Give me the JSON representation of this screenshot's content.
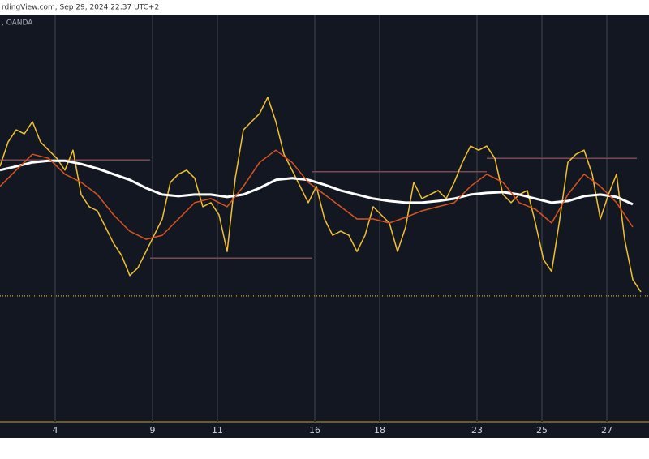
{
  "chart_data": {
    "type": "line",
    "header": "rdingView.com, Sep 29, 2024 22:37 UTC+2",
    "symbol": ", OANDA",
    "x": [
      -1.7,
      -1.45,
      -1.2,
      -0.95,
      -0.7,
      -0.45,
      -0.2,
      0.05,
      0.3,
      0.55,
      0.8,
      1.05,
      1.3,
      1.55,
      1.8,
      2.05,
      2.3,
      2.55,
      2.8,
      3.05,
      3.3,
      3.55,
      3.8,
      4.05,
      4.3,
      4.55,
      4.8,
      5.05,
      5.3,
      5.55,
      5.8,
      6.05,
      6.3,
      6.55,
      6.8,
      7.05,
      7.3,
      7.55,
      7.8,
      8.05,
      8.3,
      8.55,
      8.8,
      9.05,
      9.3,
      9.55,
      9.8,
      10.05,
      10.3,
      10.55,
      10.8,
      11.05,
      11.3,
      11.55,
      11.8,
      12.05,
      12.3,
      12.55,
      12.8,
      13.05,
      13.3,
      13.55,
      13.8,
      14.05,
      14.3,
      14.55,
      14.8,
      15.05,
      15.3,
      15.55,
      15.8,
      16.05,
      16.3,
      16.55,
      16.8,
      17.05,
      17.3,
      17.55,
      17.8,
      18.05
    ],
    "series": [
      {
        "color": "#f2c12e",
        "values": [
          62.7,
          68.7,
          71.7,
          70.7,
          73.7,
          68.7,
          66.7,
          64.7,
          61.8,
          66.7,
          55.8,
          52.8,
          51.8,
          47.8,
          43.8,
          40.8,
          35.9,
          37.8,
          41.8,
          45.8,
          49.8,
          58.8,
          60.8,
          61.8,
          59.8,
          52.8,
          53.8,
          50.8,
          41.8,
          59.8,
          71.7,
          73.7,
          75.7,
          79.7,
          73.7,
          65.7,
          61.8,
          57.8,
          53.8,
          57.8,
          49.8,
          45.8,
          46.8,
          45.8,
          41.8,
          45.8,
          52.8,
          50.8,
          48.8,
          41.8,
          47.8,
          58.8,
          54.8,
          55.8,
          56.8,
          54.8,
          58.8,
          63.7,
          67.7,
          66.7,
          67.7,
          64.7,
          55.8,
          53.8,
          55.8,
          56.8,
          48.8,
          39.8,
          36.9,
          49.8,
          63.7,
          65.7,
          66.7,
          60.8,
          49.8,
          55.8,
          60.8,
          44.8,
          34.9,
          31.9
        ]
      },
      {
        "color": "#ffffff",
        "x": [
          -1.7,
          -1.2,
          -0.7,
          -0.2,
          0.3,
          0.8,
          1.3,
          1.8,
          2.3,
          2.8,
          3.3,
          3.8,
          4.3,
          4.8,
          5.3,
          5.8,
          6.3,
          6.8,
          7.3,
          7.8,
          8.3,
          8.8,
          9.3,
          9.8,
          10.3,
          10.8,
          11.3,
          11.8,
          12.3,
          12.8,
          13.3,
          13.8,
          14.3,
          14.8,
          15.3,
          15.8,
          16.3,
          16.8,
          17.3,
          17.8
        ],
        "values": [
          61.8,
          62.7,
          63.7,
          64.1,
          64.1,
          63.3,
          62.2,
          60.8,
          59.4,
          57.4,
          55.8,
          55.4,
          55.8,
          55.8,
          55.2,
          55.8,
          57.4,
          59.4,
          59.8,
          59.4,
          58.2,
          56.8,
          55.8,
          54.8,
          54.2,
          53.8,
          53.8,
          54.2,
          54.8,
          55.8,
          56.2,
          56.4,
          55.8,
          54.8,
          53.8,
          54.2,
          55.4,
          55.8,
          55.2,
          53.4
        ]
      },
      {
        "color": "#d9531e",
        "x": [
          -1.7,
          -1.2,
          -0.7,
          -0.2,
          0.3,
          0.8,
          1.3,
          1.8,
          2.3,
          2.8,
          3.3,
          3.8,
          4.3,
          4.8,
          5.3,
          5.8,
          6.3,
          6.8,
          7.3,
          7.8,
          8.3,
          8.8,
          9.3,
          9.8,
          10.3,
          10.8,
          11.3,
          11.8,
          12.3,
          12.8,
          13.3,
          13.8,
          14.3,
          14.8,
          15.3,
          15.8,
          16.3,
          16.8,
          17.3,
          17.8
        ],
        "values": [
          57.8,
          61.8,
          65.7,
          64.7,
          60.8,
          58.8,
          55.8,
          50.8,
          46.8,
          44.8,
          45.8,
          49.8,
          53.8,
          54.8,
          52.8,
          57.8,
          63.7,
          66.7,
          63.7,
          58.8,
          55.8,
          52.8,
          49.8,
          49.8,
          48.8,
          50.2,
          51.8,
          52.8,
          53.8,
          57.8,
          60.8,
          58.8,
          53.8,
          52.2,
          48.8,
          55.8,
          60.8,
          57.8,
          53.8,
          47.8
        ]
      }
    ],
    "levels": [
      {
        "value": 64.3,
        "x": [
          -1.7,
          2.925
        ],
        "color": "#7a4c52"
      },
      {
        "value": 40.2,
        "x": [
          2.925,
          7.925
        ],
        "color": "#7a4c52"
      },
      {
        "value": 61.4,
        "x": [
          7.925,
          13.3
        ],
        "color": "#7a4c52"
      },
      {
        "value": 64.7,
        "x": [
          13.3,
          17.925
        ],
        "color": "#7a4c52"
      },
      {
        "value": 30.9,
        "x": [
          -1.7,
          18.3
        ],
        "color": "#b08a2a",
        "dotted": true
      }
    ],
    "xlim": [
      -1.7,
      18.3
    ],
    "ylim": [
      0,
      100
    ],
    "xticks": [
      {
        "value": 0,
        "label": "4"
      },
      {
        "value": 3,
        "label": "9"
      },
      {
        "value": 5,
        "label": "11"
      },
      {
        "value": 8,
        "label": "16"
      },
      {
        "value": 10,
        "label": "18"
      },
      {
        "value": 13,
        "label": "23"
      },
      {
        "value": 15,
        "label": "25"
      },
      {
        "value": 17,
        "label": "27"
      }
    ],
    "grid": true
  }
}
